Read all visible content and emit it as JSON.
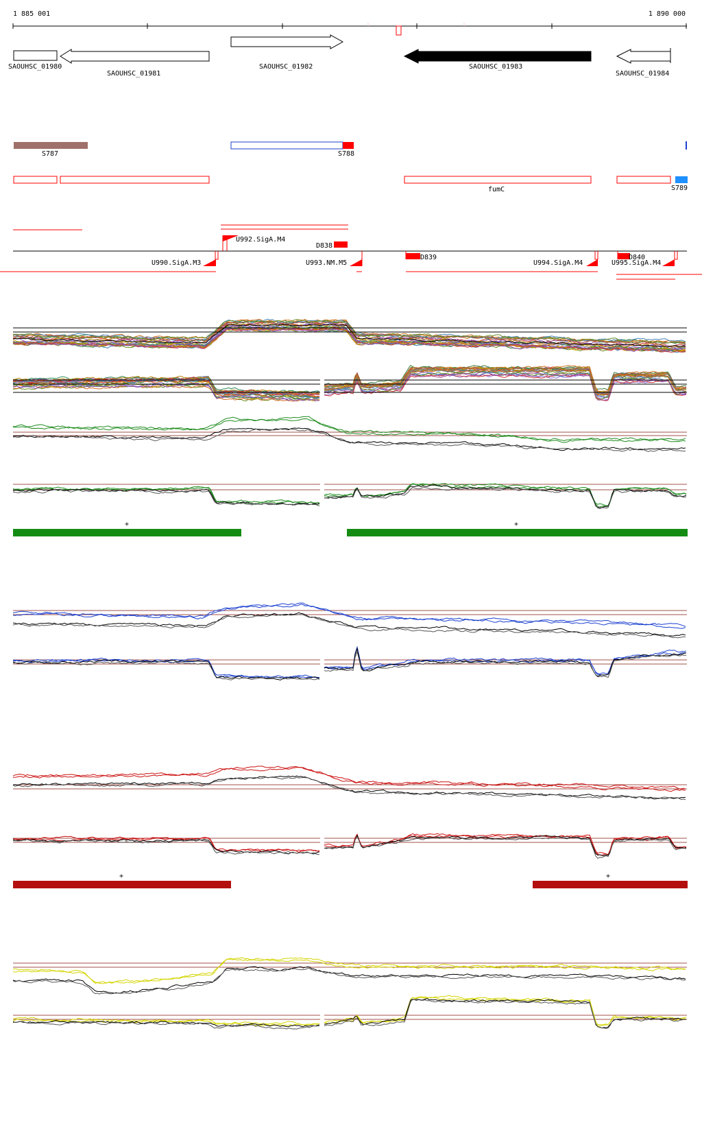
{
  "coords": {
    "start": "1 885 001",
    "end": "1 890 000"
  },
  "genes": [
    {
      "name": "SAOUHSC_01980",
      "fill": "#ffffff"
    },
    {
      "name": "SAOUHSC_01981",
      "fill": "#ffffff"
    },
    {
      "name": "SAOUHSC_01982",
      "fill": "#ffffff"
    },
    {
      "name": "SAOUHSC_01983",
      "fill": "#000000"
    },
    {
      "name": "SAOUHSC_01984",
      "fill": "#ffffff"
    }
  ],
  "s_features": [
    {
      "name": "S787",
      "color": "#a0706a"
    },
    {
      "name": "S788",
      "color": "#ff0000"
    },
    {
      "name": "S789",
      "color": "#1e90ff"
    }
  ],
  "annotation": {
    "fumc": "fumC"
  },
  "promoters_above": [
    {
      "name": "U992.SigA.M4"
    },
    {
      "name": "D838"
    }
  ],
  "promoters_below": [
    {
      "name": "U990.SigA.M3"
    },
    {
      "name": "U993.NM.M5"
    },
    {
      "name": "D839"
    },
    {
      "name": "U994.SigA.M4"
    },
    {
      "name": "D840"
    },
    {
      "name": "U995.SigA.M4"
    }
  ],
  "track_colors": {
    "green": "#1e8c1e",
    "blue": "#1a3fcf",
    "red": "#cc1111",
    "yellow": "#d4d400",
    "ref_line": "#a0504a",
    "feature_red": "#ff0000"
  },
  "segments": {
    "green": [
      "+",
      "+"
    ],
    "red": [
      "+",
      "+"
    ]
  }
}
